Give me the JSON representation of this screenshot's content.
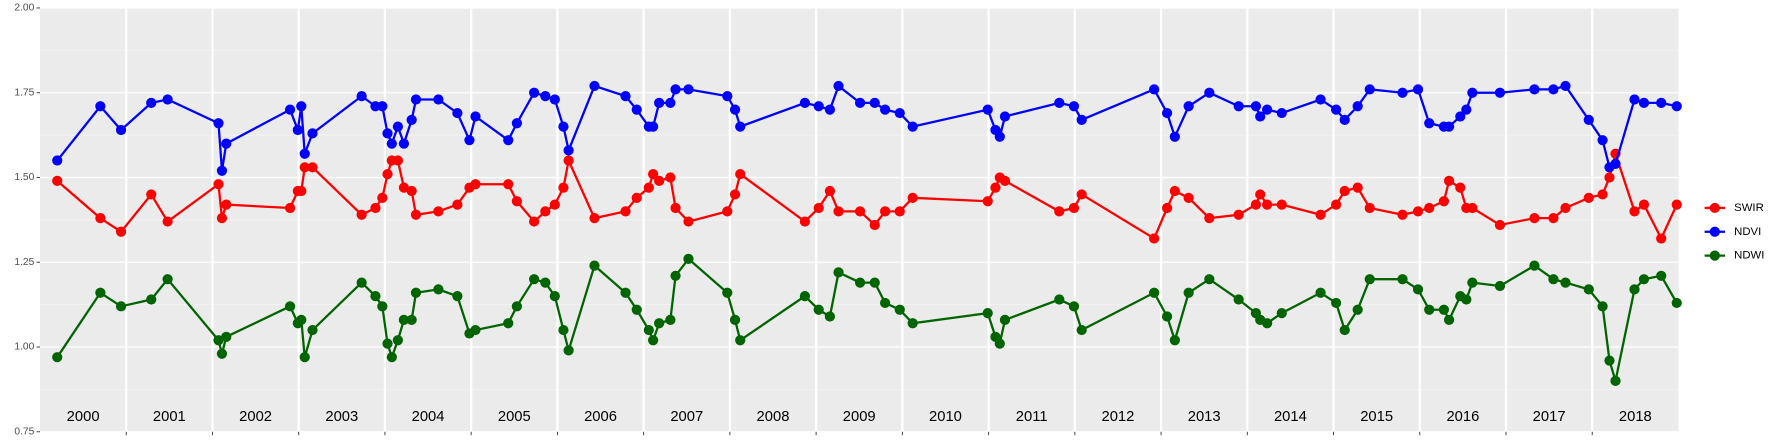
{
  "chart_data": {
    "type": "line",
    "x": [
      2000.2,
      2000.7,
      2000.94,
      2001.29,
      2001.48,
      2002.07,
      2002.11,
      2002.16,
      2002.9,
      2002.99,
      2003.03,
      2003.07,
      2003.16,
      2003.73,
      2003.89,
      2003.97,
      2004.03,
      2004.08,
      2004.15,
      2004.22,
      2004.31,
      2004.36,
      2004.62,
      2004.84,
      2004.98,
      2005.05,
      2005.43,
      2005.53,
      2005.73,
      2005.86,
      2005.97,
      2006.07,
      2006.13,
      2006.43,
      2006.79,
      2006.92,
      2007.06,
      2007.11,
      2007.18,
      2007.31,
      2007.37,
      2007.52,
      2007.97,
      2008.06,
      2008.12,
      2008.87,
      2009.03,
      2009.16,
      2009.26,
      2009.51,
      2009.68,
      2009.8,
      2009.97,
      2010.12,
      2010.99,
      2011.08,
      2011.13,
      2011.19,
      2011.82,
      2011.99,
      2012.08,
      2012.92,
      2013.07,
      2013.16,
      2013.32,
      2013.56,
      2013.9,
      2014.1,
      2014.15,
      2014.23,
      2014.4,
      2014.85,
      2015.03,
      2015.13,
      2015.28,
      2015.42,
      2015.8,
      2015.98,
      2016.11,
      2016.28,
      2016.34,
      2016.47,
      2016.54,
      2016.61,
      2016.93,
      2017.33,
      2017.55,
      2017.69,
      2017.96,
      2018.12,
      2018.2,
      2018.27,
      2018.49,
      2018.6,
      2018.8,
      2018.98
    ],
    "series": [
      {
        "name": "SWIR",
        "color": "#ff0000",
        "values": [
          1.49,
          1.38,
          1.34,
          1.45,
          1.37,
          1.48,
          1.38,
          1.42,
          1.41,
          1.46,
          1.46,
          1.53,
          1.53,
          1.39,
          1.41,
          1.44,
          1.51,
          1.55,
          1.55,
          1.47,
          1.46,
          1.39,
          1.4,
          1.42,
          1.47,
          1.48,
          1.48,
          1.43,
          1.37,
          1.4,
          1.42,
          1.47,
          1.55,
          1.38,
          1.4,
          1.44,
          1.47,
          1.51,
          1.49,
          1.5,
          1.41,
          1.37,
          1.4,
          1.45,
          1.51,
          1.37,
          1.41,
          1.46,
          1.4,
          1.4,
          1.36,
          1.4,
          1.4,
          1.44,
          1.43,
          1.47,
          1.5,
          1.49,
          1.4,
          1.41,
          1.45,
          1.32,
          1.41,
          1.46,
          1.44,
          1.38,
          1.39,
          1.42,
          1.45,
          1.42,
          1.42,
          1.39,
          1.42,
          1.46,
          1.47,
          1.41,
          1.39,
          1.4,
          1.41,
          1.43,
          1.49,
          1.47,
          1.41,
          1.41,
          1.36,
          1.38,
          1.38,
          1.41,
          1.44,
          1.45,
          1.5,
          1.57,
          1.4,
          1.42,
          1.32,
          1.42
        ]
      },
      {
        "name": "NDVI",
        "color": "#0000ff",
        "values": [
          1.55,
          1.71,
          1.64,
          1.72,
          1.73,
          1.66,
          1.52,
          1.6,
          1.7,
          1.64,
          1.71,
          1.57,
          1.63,
          1.74,
          1.71,
          1.71,
          1.63,
          1.6,
          1.65,
          1.6,
          1.67,
          1.73,
          1.73,
          1.69,
          1.61,
          1.68,
          1.61,
          1.66,
          1.75,
          1.74,
          1.73,
          1.65,
          1.58,
          1.77,
          1.74,
          1.7,
          1.65,
          1.65,
          1.72,
          1.72,
          1.76,
          1.76,
          1.74,
          1.7,
          1.65,
          1.72,
          1.71,
          1.7,
          1.77,
          1.72,
          1.72,
          1.7,
          1.69,
          1.65,
          1.7,
          1.64,
          1.62,
          1.68,
          1.72,
          1.71,
          1.67,
          1.76,
          1.69,
          1.62,
          1.71,
          1.75,
          1.71,
          1.71,
          1.68,
          1.7,
          1.69,
          1.73,
          1.7,
          1.67,
          1.71,
          1.76,
          1.75,
          1.76,
          1.66,
          1.65,
          1.65,
          1.68,
          1.7,
          1.75,
          1.75,
          1.76,
          1.76,
          1.77,
          1.67,
          1.61,
          1.53,
          1.54,
          1.73,
          1.72,
          1.72,
          1.71
        ]
      },
      {
        "name": "NDWI",
        "color": "#006400",
        "values": [
          0.97,
          1.16,
          1.12,
          1.14,
          1.2,
          1.02,
          0.98,
          1.03,
          1.12,
          1.07,
          1.08,
          0.97,
          1.05,
          1.19,
          1.15,
          1.12,
          1.01,
          0.97,
          1.02,
          1.08,
          1.08,
          1.16,
          1.17,
          1.15,
          1.04,
          1.05,
          1.07,
          1.12,
          1.2,
          1.19,
          1.15,
          1.05,
          0.99,
          1.24,
          1.16,
          1.11,
          1.05,
          1.02,
          1.07,
          1.08,
          1.21,
          1.26,
          1.16,
          1.08,
          1.02,
          1.15,
          1.11,
          1.09,
          1.22,
          1.19,
          1.19,
          1.13,
          1.11,
          1.07,
          1.1,
          1.03,
          1.01,
          1.08,
          1.14,
          1.12,
          1.05,
          1.16,
          1.09,
          1.02,
          1.16,
          1.2,
          1.14,
          1.1,
          1.08,
          1.07,
          1.1,
          1.16,
          1.13,
          1.05,
          1.11,
          1.2,
          1.2,
          1.17,
          1.11,
          1.11,
          1.08,
          1.15,
          1.14,
          1.19,
          1.18,
          1.24,
          1.2,
          1.19,
          1.17,
          1.12,
          0.96,
          0.9,
          1.17,
          1.2,
          1.21,
          1.13
        ]
      }
    ],
    "xlim": [
      2000,
      2019
    ],
    "xbreaks": [
      2001,
      2002,
      2003,
      2004,
      2005,
      2006,
      2007,
      2008,
      2009,
      2010,
      2011,
      2012,
      2013,
      2014,
      2015,
      2016,
      2017,
      2018
    ],
    "xticks": [
      {
        "value": 2000.5,
        "label": "2000"
      },
      {
        "value": 2001.5,
        "label": "2001"
      },
      {
        "value": 2002.5,
        "label": "2002"
      },
      {
        "value": 2003.5,
        "label": "2003"
      },
      {
        "value": 2004.5,
        "label": "2004"
      },
      {
        "value": 2005.5,
        "label": "2005"
      },
      {
        "value": 2006.5,
        "label": "2006"
      },
      {
        "value": 2007.5,
        "label": "2007"
      },
      {
        "value": 2008.5,
        "label": "2008"
      },
      {
        "value": 2009.5,
        "label": "2009"
      },
      {
        "value": 2010.5,
        "label": "2010"
      },
      {
        "value": 2011.5,
        "label": "2011"
      },
      {
        "value": 2012.5,
        "label": "2012"
      },
      {
        "value": 2013.5,
        "label": "2013"
      },
      {
        "value": 2014.5,
        "label": "2014"
      },
      {
        "value": 2015.5,
        "label": "2015"
      },
      {
        "value": 2016.5,
        "label": "2016"
      },
      {
        "value": 2017.5,
        "label": "2017"
      },
      {
        "value": 2018.5,
        "label": "2018"
      }
    ],
    "ylim": [
      0.75,
      2.0
    ],
    "yticks": [
      0.75,
      {
        "value": 1.0,
        "label": "1.00"
      },
      1.25,
      {
        "value": 1.5,
        "label": "1.50"
      },
      1.75,
      {
        "value": 2.0,
        "label": "2.00"
      }
    ],
    "grid": true,
    "legend": "right"
  }
}
